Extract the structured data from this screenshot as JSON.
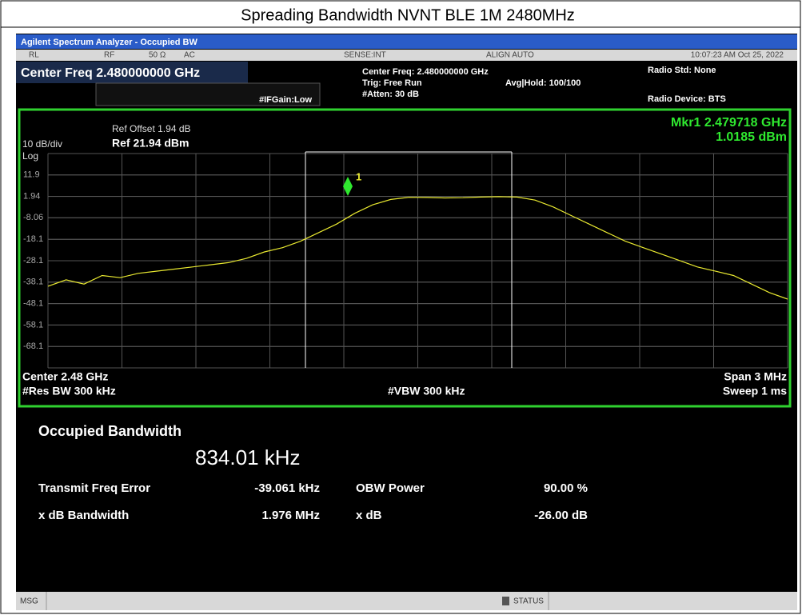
{
  "title": "Spreading Bandwidth NVNT BLE 1M 2480MHz",
  "window": {
    "title": "Agilent Spectrum Analyzer - Occupied BW"
  },
  "status_row": {
    "rl": "RL",
    "rf": "RF",
    "imp": "50 Ω",
    "ac": "AC",
    "sense": "SENSE:INT",
    "align": "ALIGN AUTO",
    "time": "10:07:23 AM Oct 25, 2022"
  },
  "settings": {
    "center": "Center Freq 2.480000000 GHz",
    "center_small": "Center Freq: 2.480000000 GHz",
    "trig": "Trig: Free Run",
    "avg": "Avg|Hold: 100/100",
    "atten": "#Atten: 30 dB",
    "ifgain": "#IFGain:Low",
    "radio_std": "Radio Std: None",
    "radio_dev": "Radio Device: BTS"
  },
  "screen": {
    "ref_offset": "Ref Offset 1.94 dB",
    "ref": "Ref 21.94 dBm",
    "scale": "10 dB/div",
    "log": "Log",
    "marker_freq": "Mkr1  2.479718 GHz",
    "marker_level": "1.0185 dBm",
    "marker_label": "1",
    "yticks": [
      11.9,
      1.94,
      -8.06,
      -18.1,
      -28.1,
      -38.1,
      -48.1,
      -58.1,
      -68.1
    ],
    "trace": {
      "color": "#e8e830",
      "values": [
        -40,
        -37,
        -39,
        -35,
        -36,
        -34,
        -33,
        -32,
        -31,
        -30,
        -29,
        -27,
        -24,
        -22,
        -19,
        -15,
        -11,
        -6,
        -2,
        0.5,
        1.5,
        1.4,
        1.2,
        1.3,
        1.6,
        1.8,
        1.6,
        0.2,
        -3,
        -7,
        -11,
        -15,
        -19,
        -22,
        -25,
        -28,
        -31,
        -33,
        -35,
        -39,
        -43,
        -46
      ]
    },
    "center": "Center  2.48 GHz",
    "rbw": "#Res BW  300 kHz",
    "vbw": "#VBW  300 kHz",
    "span": "Span 3 MHz",
    "sweep": "Sweep  1 ms"
  },
  "results": {
    "heading": "Occupied Bandwidth",
    "obw": "834.01 kHz",
    "tfe_label": "Transmit Freq Error",
    "tfe": "-39.061 kHz",
    "obwp_label": "OBW Power",
    "obwp": "90.00 %",
    "xdbbw_label": "x dB Bandwidth",
    "xdbbw": "1.976 MHz",
    "xdb_label": "x dB",
    "xdb": "-26.00 dB"
  },
  "statusbar": {
    "msg": "MSG",
    "status": "STATUS"
  }
}
